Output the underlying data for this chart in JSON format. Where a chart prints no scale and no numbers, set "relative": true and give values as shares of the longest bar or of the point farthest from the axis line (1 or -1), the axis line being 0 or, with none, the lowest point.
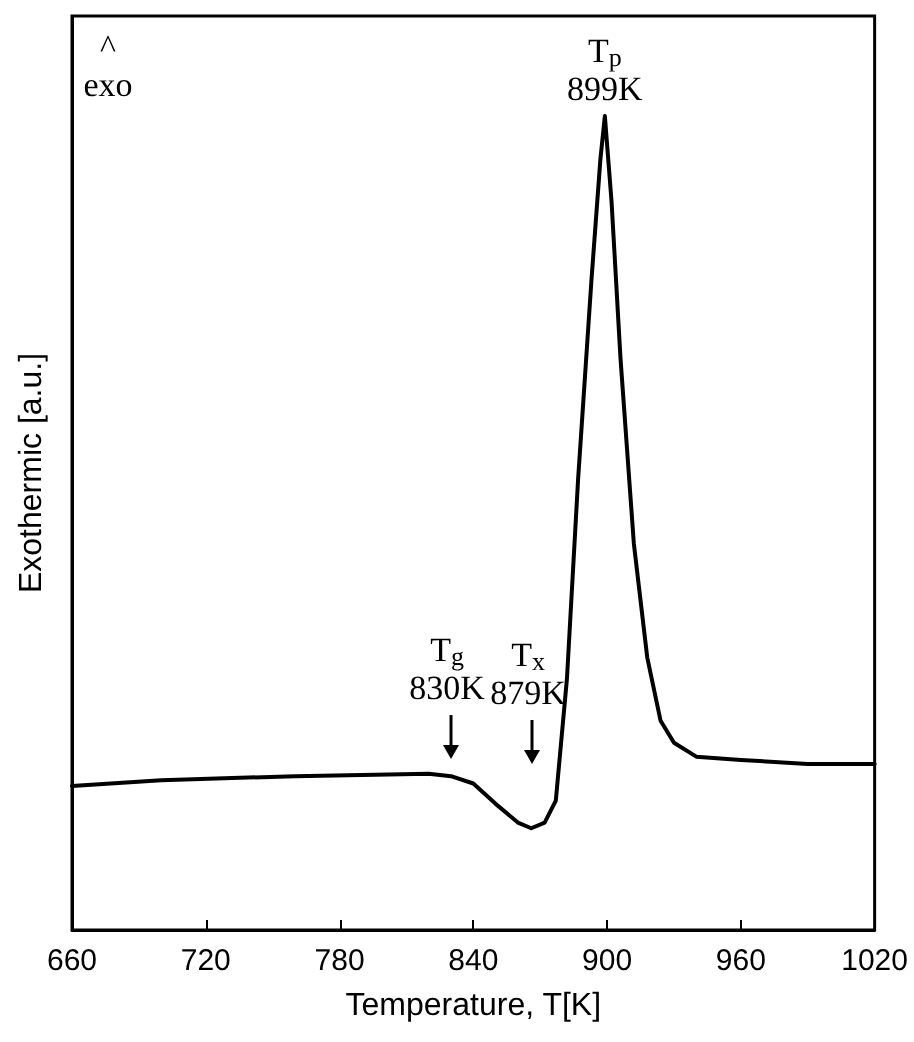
{
  "chart_data": {
    "type": "line",
    "xlabel": "Temperature, T[K]",
    "ylabel": "Exothermic [a.u.]",
    "relative": true,
    "color": "#000000",
    "grid": false,
    "marker": "none",
    "line_style": "solid",
    "xlim": [
      660,
      1020
    ],
    "xticks": [
      660,
      720,
      780,
      840,
      900,
      960,
      1020
    ],
    "x": [
      660,
      700,
      760,
      820,
      830,
      840,
      850,
      860,
      866,
      872,
      877,
      882,
      887,
      893,
      897,
      899,
      902,
      906,
      912,
      918,
      924,
      930,
      940,
      960,
      990,
      1020
    ],
    "values": [
      0.177,
      0.184,
      0.189,
      0.192,
      0.189,
      0.18,
      0.155,
      0.132,
      0.125,
      0.132,
      0.159,
      0.309,
      0.554,
      0.799,
      0.947,
      1,
      0.895,
      0.703,
      0.475,
      0.335,
      0.257,
      0.23,
      0.213,
      0.209,
      0.204,
      0.204
    ],
    "annotations": [
      "^\nexo",
      {
        "text": "T$_{p}$\n899K",
        "x": 899,
        "y": 1
      },
      {
        "text": "T$_{g}$\n830K",
        "x": 830,
        "y": 0.189
      },
      "T$_{x}$\n879K"
    ]
  }
}
